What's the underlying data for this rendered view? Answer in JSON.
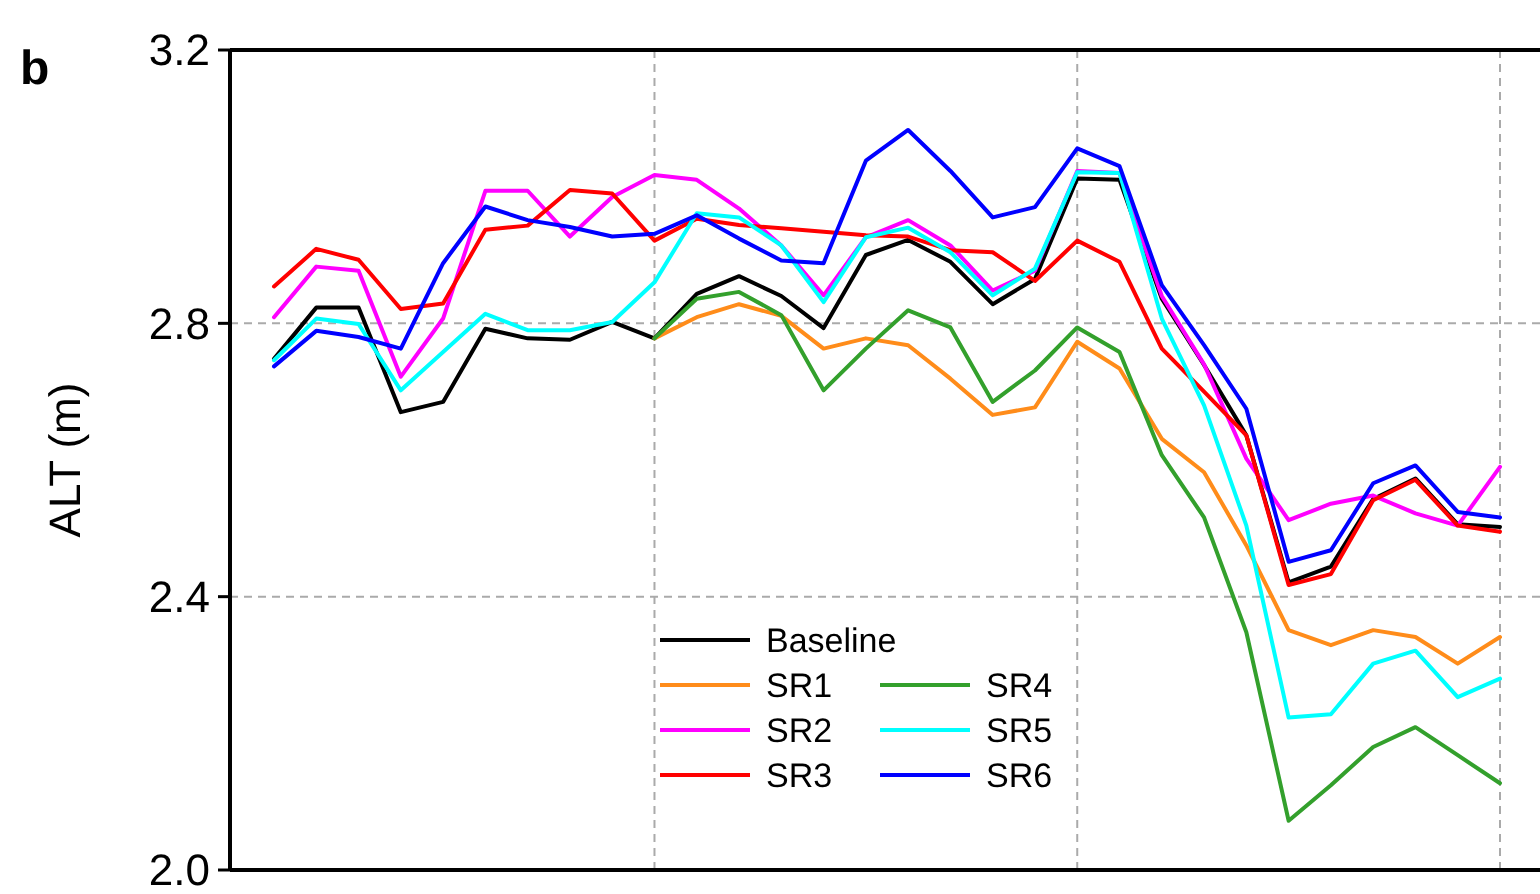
{
  "chart_data": {
    "type": "line",
    "title": "b",
    "ylabel": "ALT (m)",
    "categories": [
      null,
      null,
      null,
      null,
      null,
      null,
      null,
      null,
      null,
      null,
      null,
      null,
      null,
      null,
      null,
      null,
      null,
      null,
      null,
      null,
      null,
      null,
      null,
      null,
      null,
      null,
      null,
      null,
      null,
      null
    ],
    "ylim": [
      2.0,
      3.2
    ],
    "yticks": [
      {
        "value": 2.0,
        "label": "2.0"
      },
      {
        "value": 2.4,
        "label": "2.4"
      },
      {
        "value": 2.8,
        "label": "2.8"
      },
      {
        "value": 3.2,
        "label": "3.2"
      }
    ],
    "grid": true,
    "legend": "bottom",
    "marker": "none",
    "line_style": "solid",
    "series": [
      {
        "name": "Baseline",
        "color": "#000000",
        "values": [
          2.748,
          2.823,
          2.823,
          2.67,
          2.685,
          2.792,
          2.778,
          2.776,
          2.802,
          2.778,
          2.843,
          2.869,
          2.84,
          2.793,
          2.9,
          2.922,
          2.89,
          2.828,
          2.865,
          3.012,
          3.01,
          2.836,
          2.739,
          2.636,
          2.421,
          2.444,
          2.543,
          2.573,
          2.506,
          2.502
        ]
      },
      {
        "name": "SR1",
        "color": "#ff8c1a",
        "values": [
          null,
          null,
          null,
          null,
          null,
          null,
          null,
          null,
          null,
          2.778,
          2.809,
          2.828,
          2.811,
          2.763,
          2.778,
          2.768,
          2.719,
          2.666,
          2.677,
          2.773,
          2.734,
          2.631,
          2.582,
          2.475,
          2.351,
          2.329,
          2.351,
          2.341,
          2.302,
          2.341
        ]
      },
      {
        "name": "SR2",
        "color": "#ff00ff",
        "values": [
          2.809,
          2.883,
          2.877,
          2.722,
          2.807,
          2.994,
          2.994,
          2.927,
          2.985,
          3.017,
          3.01,
          2.968,
          2.914,
          2.841,
          2.926,
          2.951,
          2.914,
          2.848,
          2.877,
          3.023,
          3.02,
          2.84,
          2.74,
          2.602,
          2.512,
          2.536,
          2.548,
          2.522,
          2.504,
          2.59
        ]
      },
      {
        "name": "SR3",
        "color": "#ff0000",
        "values": [
          2.854,
          2.909,
          2.893,
          2.821,
          2.829,
          2.937,
          2.943,
          2.995,
          2.99,
          2.921,
          2.953,
          2.944,
          2.939,
          2.934,
          2.929,
          2.927,
          2.907,
          2.904,
          2.862,
          2.921,
          2.89,
          2.763,
          2.7,
          2.636,
          2.417,
          2.433,
          2.541,
          2.571,
          2.504,
          2.495
        ]
      },
      {
        "name": "SR4",
        "color": "#33a02c",
        "values": [
          null,
          null,
          null,
          null,
          null,
          null,
          null,
          null,
          null,
          2.778,
          2.836,
          2.846,
          2.812,
          2.702,
          2.763,
          2.819,
          2.794,
          2.685,
          2.731,
          2.794,
          2.758,
          2.607,
          2.516,
          2.348,
          2.072,
          2.124,
          2.18,
          2.209,
          2.168,
          2.127
        ]
      },
      {
        "name": "SR5",
        "color": "#00ffff",
        "values": [
          2.746,
          2.807,
          2.799,
          2.702,
          2.758,
          2.814,
          2.79,
          2.79,
          2.802,
          2.86,
          2.961,
          2.955,
          2.914,
          2.831,
          2.926,
          2.94,
          2.904,
          2.841,
          2.88,
          3.021,
          3.02,
          2.807,
          2.68,
          2.504,
          2.223,
          2.228,
          2.302,
          2.321,
          2.253,
          2.28
        ]
      },
      {
        "name": "SR6",
        "color": "#0000ff",
        "values": [
          2.737,
          2.789,
          2.78,
          2.763,
          2.888,
          2.971,
          2.951,
          2.941,
          2.927,
          2.931,
          2.958,
          2.924,
          2.892,
          2.888,
          3.038,
          3.083,
          3.023,
          2.955,
          2.97,
          3.056,
          3.03,
          2.856,
          2.768,
          2.675,
          2.451,
          2.468,
          2.566,
          2.592,
          2.524,
          2.516
        ]
      }
    ]
  }
}
